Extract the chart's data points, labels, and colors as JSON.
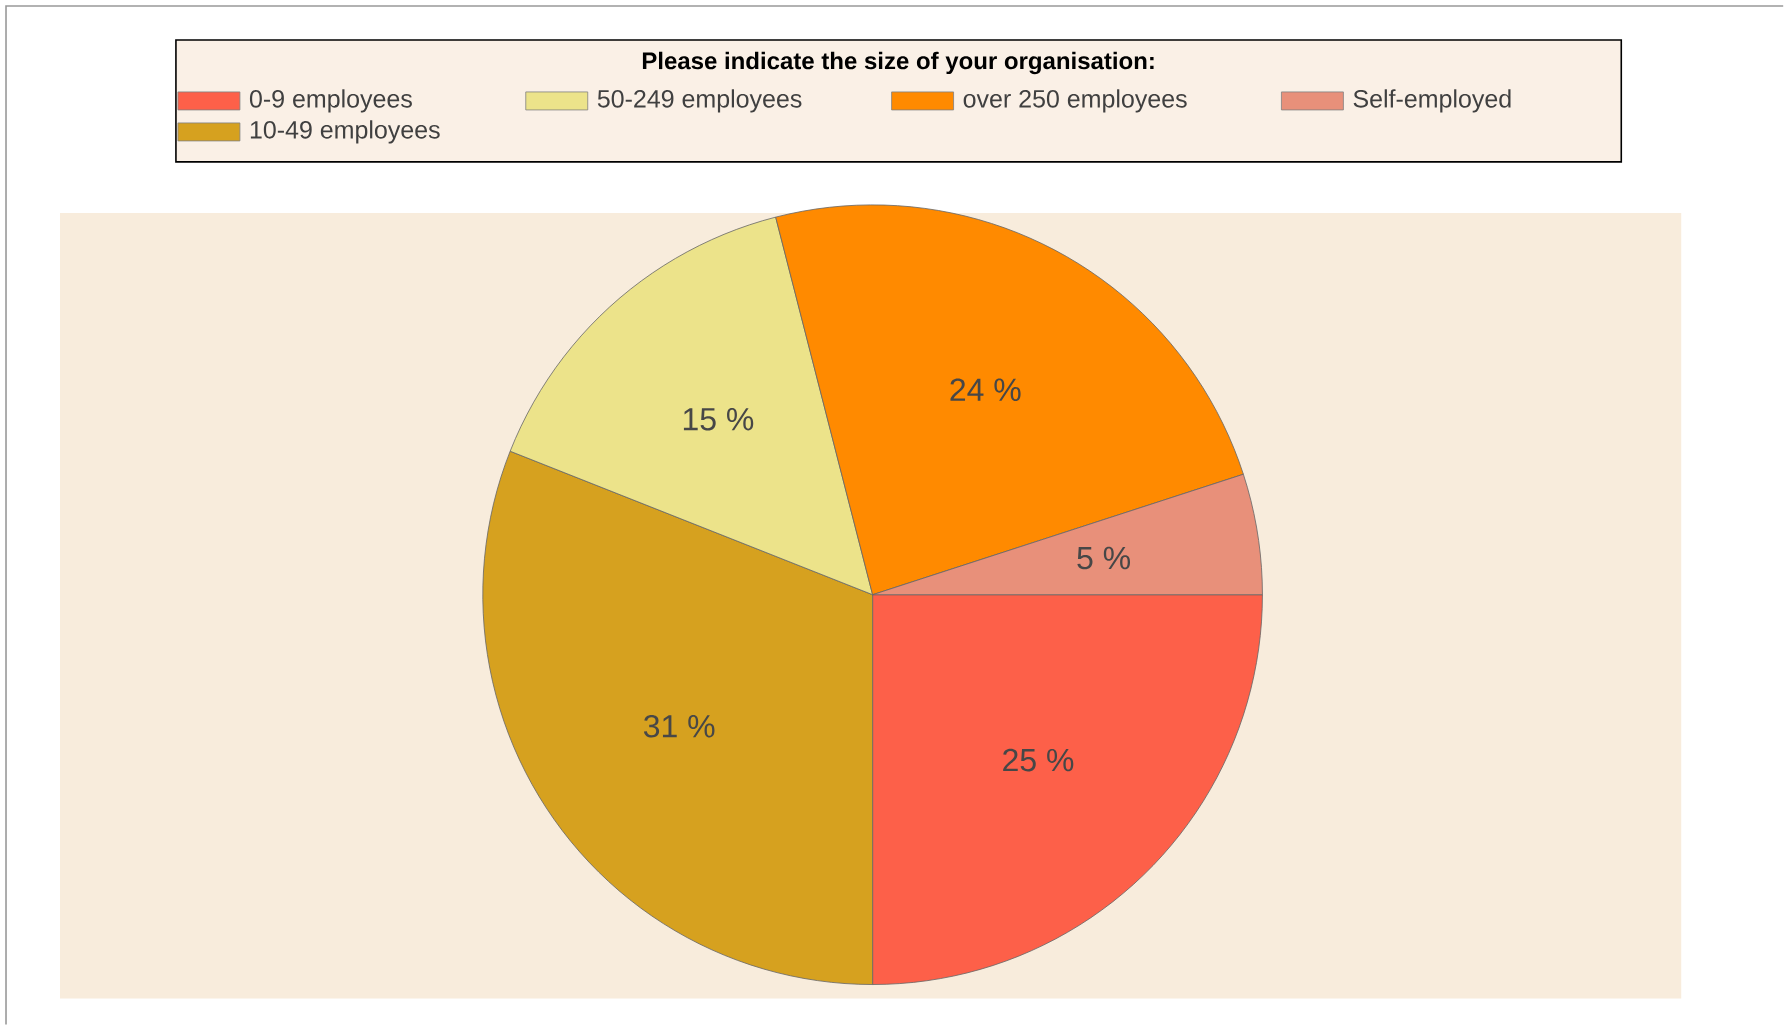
{
  "chart_data": {
    "type": "pie",
    "legend_title": "Please indicate the size of your organisation:",
    "legend": "top",
    "categories": [
      "0-9 employees",
      "10-49 employees",
      "50-249 employees",
      "over 250 employees",
      "Self-employed"
    ],
    "values": [
      25,
      31,
      15,
      24,
      5
    ],
    "value_labels": [
      "25 %",
      "31 %",
      "15 %",
      "24 %",
      "5 %"
    ],
    "colors": [
      "#fd6049",
      "#d6a11f",
      "#ece38a",
      "#ff8a00",
      "#e8907a"
    ]
  }
}
